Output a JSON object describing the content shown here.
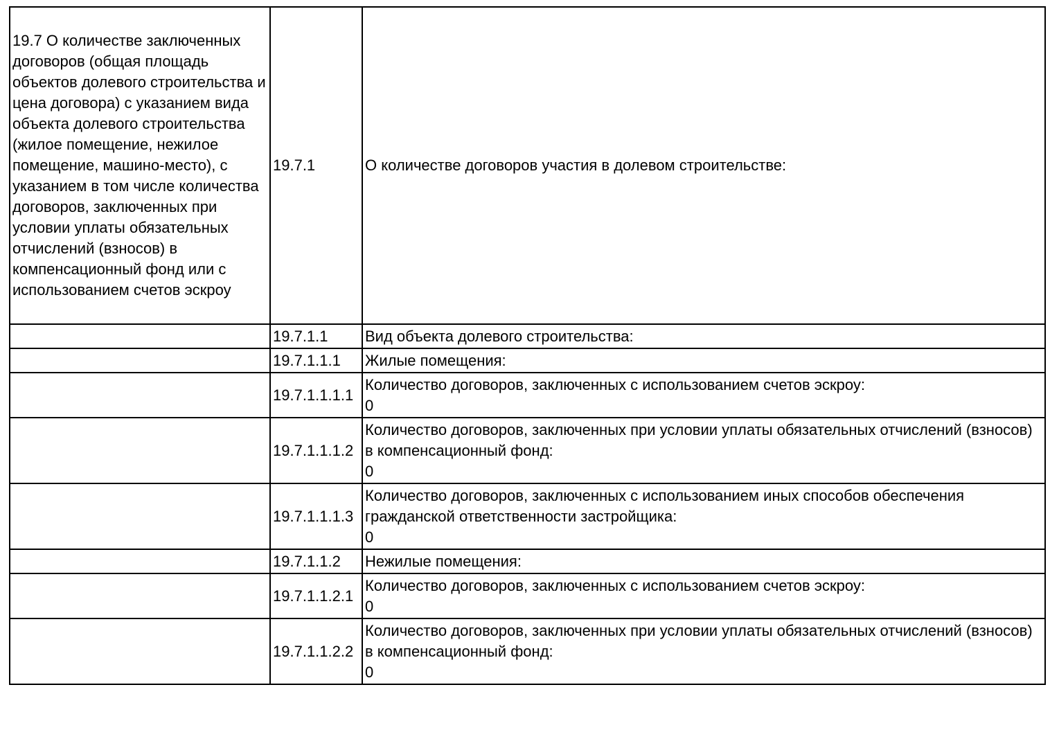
{
  "document": {
    "colors": {
      "background": "#ffffff",
      "border": "#000000",
      "text": "#000000"
    },
    "section": {
      "text": "19.7 О количестве заключенных договоров (общая площадь объектов долевого строительства и цена договора) с указанием вида объекта долевого строительства (жилое помещение, нежилое помещение, машино-место), с указанием в том числе количества договоров, заключенных при условии уплаты обязательных отчислений (взносов) в компенсационный фонд или с использованием счетов эскроу"
    },
    "rows": [
      {
        "code": "19.7.1",
        "label": "О количестве договоров участия в долевом строительстве:"
      },
      {
        "code": "19.7.1.1",
        "label": "Вид объекта долевого строительства:"
      },
      {
        "code": "19.7.1.1.1",
        "label": "Жилые помещения:"
      },
      {
        "code": "19.7.1.1.1.1",
        "label": "Количество договоров, заключенных с использованием счетов эскроу:",
        "value": "0"
      },
      {
        "code": "19.7.1.1.1.2",
        "label": "Количество договоров, заключенных при условии уплаты обязательных отчислений (взносов) в компенсационный фонд:",
        "value": "0"
      },
      {
        "code": "19.7.1.1.1.3",
        "label": "Количество договоров, заключенных с использованием иных способов обеспечения гражданской ответственности застройщика:",
        "value": "0"
      },
      {
        "code": "19.7.1.1.2",
        "label": "Нежилые помещения:"
      },
      {
        "code": "19.7.1.1.2.1",
        "label": "Количество договоров, заключенных с использованием счетов эскроу:",
        "value": "0"
      },
      {
        "code": "19.7.1.1.2.2",
        "label": "Количество договоров, заключенных при условии уплаты обязательных отчислений (взносов) в компенсационный фонд:",
        "value": "0"
      }
    ]
  }
}
